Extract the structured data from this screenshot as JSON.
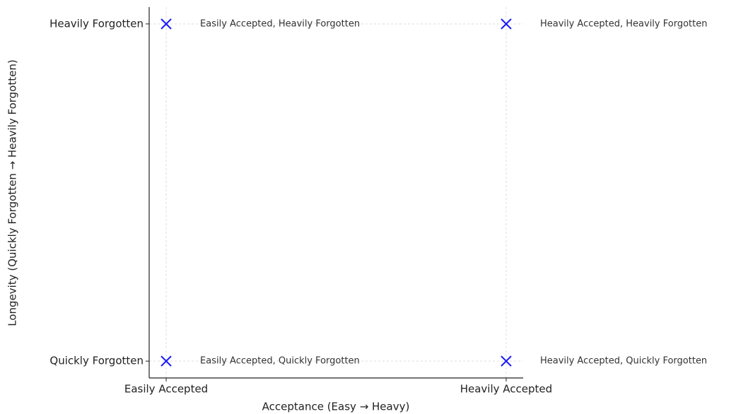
{
  "chart_data": {
    "type": "scatter",
    "x_label": "Acceptance (Easy → Heavy)",
    "y_label": "Longevity (Quickly Forgotten → Heavily Forgotten)",
    "x": [
      0,
      1,
      0,
      1
    ],
    "values": [
      0,
      0,
      1,
      1
    ],
    "point_labels": [
      "Easily Accepted, Quickly Forgotten",
      "Heavily Accepted, Quickly Forgotten",
      "Easily Accepted, Heavily Forgotten",
      "Heavily Accepted, Heavily Forgotten"
    ],
    "color": "#1a1aff",
    "marker": "x",
    "xlim": [
      -0.05,
      1.05
    ],
    "ylim": [
      -0.05,
      1.05
    ],
    "xticks": [
      {
        "value": 0,
        "label": "Easily Accepted"
      },
      {
        "value": 1,
        "label": "Heavily Accepted"
      }
    ],
    "yticks": [
      {
        "value": 0,
        "label": "Quickly Forgotten"
      },
      {
        "value": 1,
        "label": "Heavily Forgotten"
      }
    ],
    "grid": true
  }
}
